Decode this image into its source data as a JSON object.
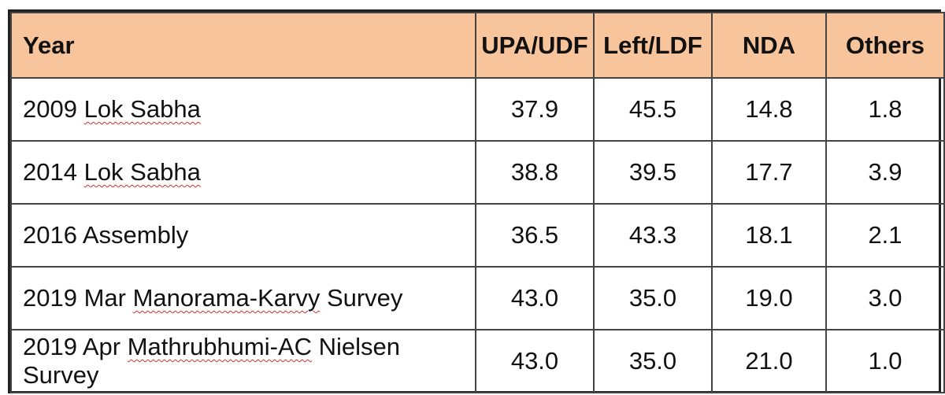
{
  "chart_data": {
    "type": "table",
    "columns": [
      "Year",
      "UPA/UDF",
      "Left/LDF",
      "NDA",
      "Others"
    ],
    "rows": [
      {
        "year_prefix": "2009 ",
        "year_marked": "Lok Sabha",
        "year_suffix": "",
        "values": [
          "37.9",
          "45.5",
          "14.8",
          "1.8"
        ]
      },
      {
        "year_prefix": "2014 ",
        "year_marked": "Lok Sabha",
        "year_suffix": "",
        "values": [
          "38.8",
          "39.5",
          "17.7",
          "3.9"
        ]
      },
      {
        "year_prefix": "2016 Assembly",
        "year_marked": "",
        "year_suffix": "",
        "values": [
          "36.5",
          "43.3",
          "18.1",
          "2.1"
        ]
      },
      {
        "year_prefix": "2019 Mar ",
        "year_marked": "Manorama-Karvy",
        "year_suffix": " Survey",
        "values": [
          "43.0",
          "35.0",
          "19.0",
          "3.0"
        ]
      },
      {
        "year_prefix": "2019 Apr ",
        "year_marked": "Mathrubhumi-AC",
        "year_suffix": " Nielsen Survey",
        "values": [
          "43.0",
          "35.0",
          "21.0",
          "1.0"
        ]
      }
    ],
    "colors": {
      "header_bg": "#f8c49b",
      "spellcheck_underline": "#d32f2f"
    }
  }
}
